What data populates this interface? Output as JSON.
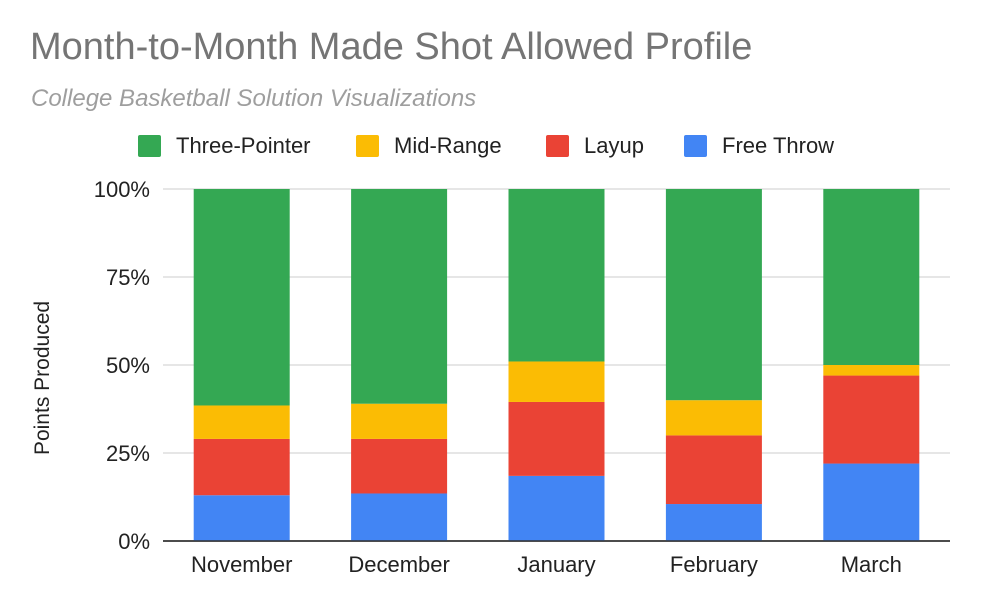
{
  "chart_data": {
    "type": "bar",
    "stacked": true,
    "percent": true,
    "title": "Month-to-Month Made Shot Allowed Profile",
    "subtitle": "College Basketball Solution Visualizations",
    "xlabel": "",
    "ylabel": "Points Produced",
    "ylim": [
      0,
      100
    ],
    "yticks": [
      "0%",
      "25%",
      "50%",
      "75%",
      "100%"
    ],
    "grid": true,
    "legend_position": "top",
    "categories": [
      "November",
      "December",
      "January",
      "February",
      "March"
    ],
    "series": [
      {
        "name": "Free Throw",
        "color": "#4285f4",
        "values": [
          13,
          13.5,
          18.5,
          10.5,
          22
        ]
      },
      {
        "name": "Layup",
        "color": "#ea4335",
        "values": [
          16,
          15.5,
          21,
          19.5,
          25
        ]
      },
      {
        "name": "Mid-Range",
        "color": "#fbbc04",
        "values": [
          9.5,
          10,
          11.5,
          10,
          3
        ]
      },
      {
        "name": "Three-Pointer",
        "color": "#34a853",
        "values": [
          61.5,
          61,
          49,
          60,
          50
        ]
      }
    ]
  }
}
